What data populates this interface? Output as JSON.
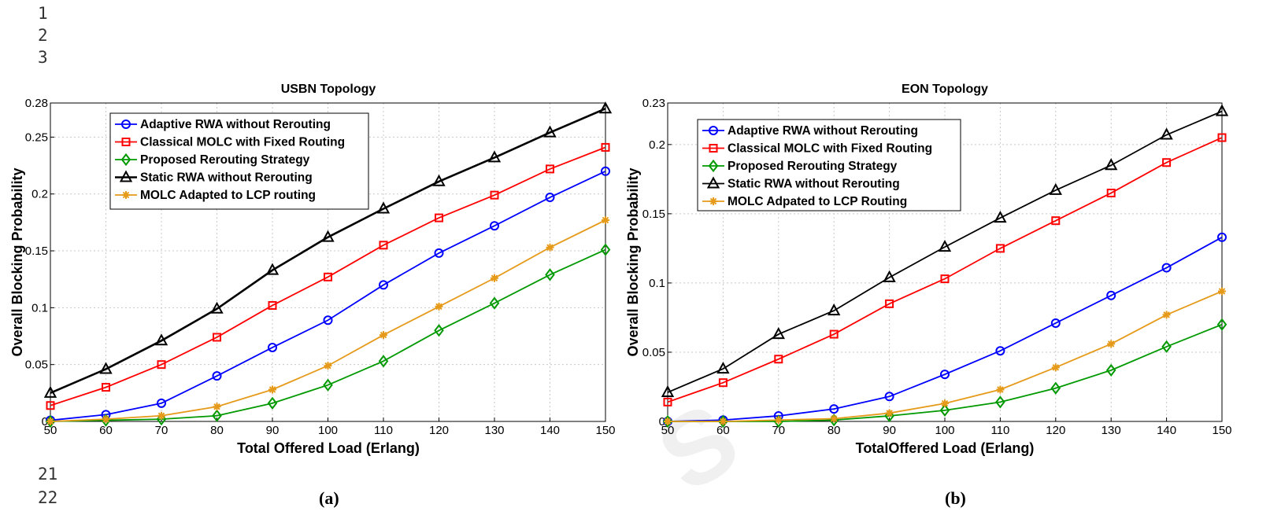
{
  "line_numbers": [
    "1",
    "2",
    "3",
    "21",
    "22"
  ],
  "captions": [
    "(a)",
    "(b)"
  ],
  "watermark": "S",
  "chart_data": [
    {
      "type": "line",
      "title": "USBN Topology",
      "xlabel": "Total Offered Load (Erlang)",
      "ylabel": "Overall Blocking Probability",
      "x": [
        50,
        60,
        70,
        80,
        90,
        100,
        110,
        120,
        130,
        140,
        150
      ],
      "xlim": [
        50,
        150
      ],
      "ylim": [
        0,
        0.28
      ],
      "xticks": [
        "50",
        "60",
        "70",
        "80",
        "90",
        "100",
        "110",
        "120",
        "130",
        "140",
        "150"
      ],
      "yticks": [
        {
          "value": 0,
          "label": "0"
        },
        {
          "value": 0.05,
          "label": "0.05"
        },
        {
          "value": 0.1,
          "label": "0.1"
        },
        {
          "value": 0.15,
          "label": "0.15"
        },
        {
          "value": 0.2,
          "label": "0.2"
        },
        {
          "value": 0.25,
          "label": "0.25"
        },
        {
          "value": 0.28,
          "label": "0.28"
        }
      ],
      "grid": true,
      "legend_position": "top-left",
      "series": [
        {
          "name": "Adaptive RWA without Rerouting",
          "color": "#0000ff",
          "marker": "circle",
          "values": [
            0.001,
            0.006,
            0.016,
            0.04,
            0.065,
            0.089,
            0.12,
            0.148,
            0.172,
            0.197,
            0.22
          ]
        },
        {
          "name": "Classical MOLC with Fixed Routing",
          "color": "#ff0000",
          "marker": "square",
          "values": [
            0.014,
            0.03,
            0.05,
            0.074,
            0.102,
            0.127,
            0.155,
            0.179,
            0.199,
            0.222,
            0.241
          ]
        },
        {
          "name": "Proposed Rerouting Strategy",
          "color": "#009900",
          "marker": "diamond",
          "values": [
            0.0,
            0.001,
            0.002,
            0.005,
            0.016,
            0.032,
            0.053,
            0.08,
            0.104,
            0.129,
            0.151
          ]
        },
        {
          "name": "Static RWA without Rerouting",
          "color": "#000000",
          "marker": "triangle",
          "thick": true,
          "values": [
            0.025,
            0.046,
            0.071,
            0.099,
            0.133,
            0.162,
            0.187,
            0.211,
            0.232,
            0.254,
            0.275
          ]
        },
        {
          "name": "MOLC Adapted to LCP routing",
          "color": "#e69a1a",
          "marker": "star",
          "values": [
            0.0,
            0.002,
            0.005,
            0.013,
            0.028,
            0.049,
            0.076,
            0.101,
            0.126,
            0.153,
            0.177
          ]
        }
      ]
    },
    {
      "type": "line",
      "title": "EON Topology",
      "xlabel": "TotalOffered Load (Erlang)",
      "ylabel": "Overall Blocking Probability",
      "x": [
        50,
        60,
        70,
        80,
        90,
        100,
        110,
        120,
        130,
        140,
        150
      ],
      "xlim": [
        50,
        150
      ],
      "ylim": [
        0,
        0.23
      ],
      "xticks": [
        "50",
        "60",
        "70",
        "80",
        "90",
        "100",
        "110",
        "120",
        "130",
        "140",
        "150"
      ],
      "yticks": [
        {
          "value": 0,
          "label": "0"
        },
        {
          "value": 0.05,
          "label": "0.05"
        },
        {
          "value": 0.1,
          "label": "0.1"
        },
        {
          "value": 0.15,
          "label": "0.15"
        },
        {
          "value": 0.2,
          "label": "0.2"
        },
        {
          "value": 0.23,
          "label": "0.23"
        }
      ],
      "grid": true,
      "legend_position": "top-left",
      "series": [
        {
          "name": "Adaptive RWA without Rerouting",
          "color": "#0000ff",
          "marker": "circle",
          "values": [
            0.0,
            0.001,
            0.004,
            0.009,
            0.018,
            0.034,
            0.051,
            0.071,
            0.091,
            0.111,
            0.133
          ]
        },
        {
          "name": "Classical MOLC with Fixed Routing",
          "color": "#ff0000",
          "marker": "square",
          "values": [
            0.014,
            0.028,
            0.045,
            0.063,
            0.085,
            0.103,
            0.125,
            0.145,
            0.165,
            0.187,
            0.205
          ]
        },
        {
          "name": "Proposed Rerouting Strategy",
          "color": "#009900",
          "marker": "diamond",
          "values": [
            0.0,
            0.0,
            0.0,
            0.001,
            0.004,
            0.008,
            0.014,
            0.024,
            0.037,
            0.054,
            0.07
          ]
        },
        {
          "name": "Static RWA without Rerouting",
          "color": "#000000",
          "marker": "triangle",
          "thick": false,
          "values": [
            0.021,
            0.038,
            0.063,
            0.08,
            0.104,
            0.126,
            0.147,
            0.167,
            0.185,
            0.207,
            0.224
          ]
        },
        {
          "name": "MOLC Adpated to LCP Routing",
          "color": "#e69a1a",
          "marker": "star",
          "values": [
            0.0,
            0.0,
            0.001,
            0.002,
            0.006,
            0.013,
            0.023,
            0.039,
            0.056,
            0.077,
            0.094
          ]
        }
      ]
    }
  ]
}
